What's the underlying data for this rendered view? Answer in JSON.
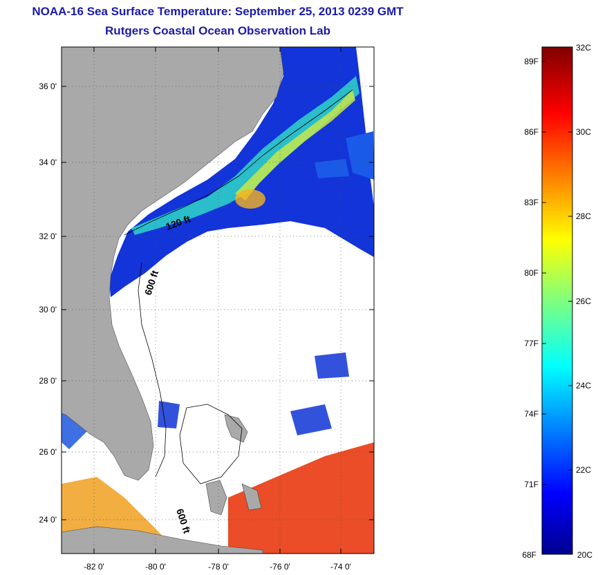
{
  "title": "NOAA-16 Sea Surface Temperature:  September 25, 2013 0239 GMT",
  "subtitle": "Rutgers Coastal Ocean Observation Lab",
  "map": {
    "lat_ticks": [
      "36 0'",
      "34 0'",
      "32 0'",
      "30 0'",
      "28 0'",
      "26 0'",
      "24 0'"
    ],
    "lon_ticks": [
      "-82 0'",
      "-80 0'",
      "-78 0'",
      "-76 0'",
      "-74 0'"
    ],
    "contour_labels": [
      "120 ft",
      "600 ft",
      "600 ft"
    ],
    "colors": {
      "land": "#a9a9a9",
      "cloud": "#ffffff"
    }
  },
  "colorbar": {
    "f_labels": [
      "89F",
      "86F",
      "83F",
      "80F",
      "77F",
      "74F",
      "71F",
      "68F"
    ],
    "c_labels": [
      "32C",
      "30C",
      "28C",
      "26C",
      "24C",
      "22C",
      "20C"
    ],
    "range_c": [
      20,
      32
    ],
    "colormap": "jet"
  }
}
